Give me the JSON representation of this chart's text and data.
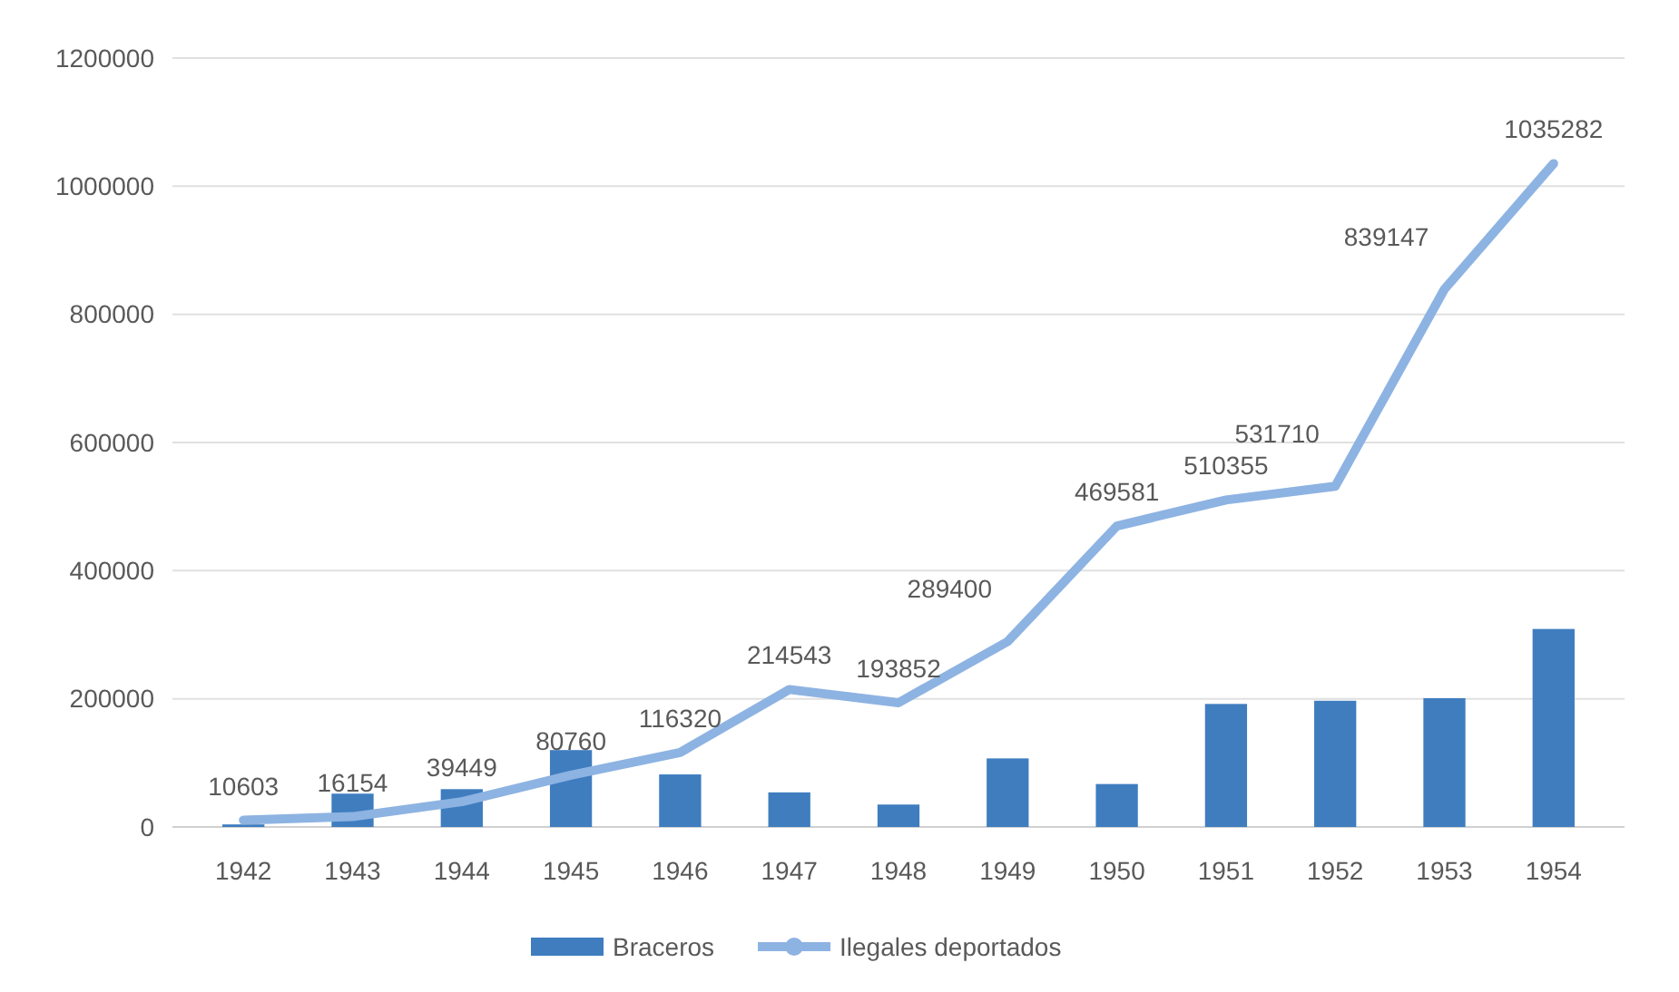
{
  "chart_data": {
    "type": "bar",
    "categories": [
      "1942",
      "1943",
      "1944",
      "1945",
      "1946",
      "1947",
      "1948",
      "1949",
      "1950",
      "1951",
      "1952",
      "1953",
      "1954"
    ],
    "series": [
      {
        "name": "Braceros",
        "color": "#3f7dbf",
        "values": [
          4000,
          52000,
          59000,
          120000,
          82000,
          54000,
          35000,
          107000,
          67000,
          192000,
          197000,
          201000,
          309000
        ]
      },
      {
        "name": "Ilegales deportados",
        "type": "line",
        "color": "#8db3e2",
        "data_labels": true,
        "values": [
          10603,
          16154,
          39449,
          80760,
          116320,
          214543,
          193852,
          289400,
          469581,
          510355,
          531710,
          839147,
          1035282
        ]
      }
    ],
    "ylim": [
      0,
      1200000
    ],
    "yticks": [
      0,
      200000,
      400000,
      600000,
      800000,
      1000000,
      1200000
    ],
    "grid": "y",
    "legend": "bottom",
    "marker": "none",
    "line_style": "solid"
  }
}
